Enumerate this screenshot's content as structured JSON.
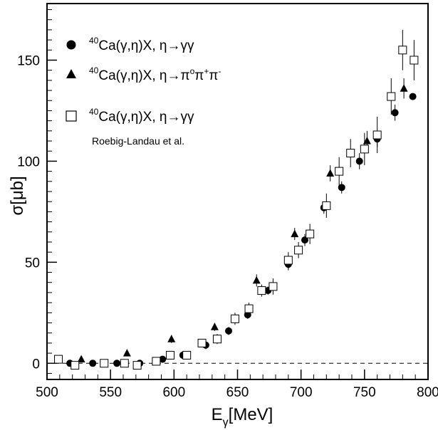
{
  "chart_data": {
    "type": "scatter",
    "xlabel_main": "E",
    "xlabel_sub": "γ",
    "xlabel_rest": "[MeV]",
    "ylabel": "σ[μb]",
    "xlim": [
      500,
      800
    ],
    "ylim": [
      -8,
      178
    ],
    "xticks": [
      500,
      550,
      600,
      650,
      700,
      750,
      800
    ],
    "yticks": [
      0,
      50,
      100,
      150
    ],
    "reference_line_y": 0,
    "legend_position": "top-left",
    "legend": {
      "entry1": {
        "prefix": "40",
        "text": "Ca(γ,η)X, η→γγ"
      },
      "entry2": {
        "prefix": "40",
        "text_a": "Ca(γ,η)X, η→π",
        "sup_o": "o",
        "mid1": "π",
        "sup_p": "+",
        "mid2": "π",
        "sup_m": "-"
      },
      "entry3": {
        "prefix": "40",
        "text": "Ca(γ,η)X, η→γγ"
      },
      "note": "Roebig-Landau et al."
    },
    "series": [
      {
        "marker": "circle",
        "x": [
          518,
          536,
          555,
          573,
          591,
          607,
          625,
          643,
          658,
          674,
          690,
          703,
          718,
          732,
          746,
          760,
          774,
          788
        ],
        "y": [
          0,
          0,
          0,
          0,
          2,
          4,
          9,
          16,
          24,
          36,
          49,
          61,
          77,
          87,
          100,
          111,
          124,
          132
        ],
        "err": [
          1,
          1,
          1,
          1,
          1,
          1.5,
          2,
          2,
          2,
          2,
          3,
          3,
          3,
          3,
          4,
          4,
          4,
          0
        ]
      },
      {
        "marker": "triangle",
        "x": [
          527,
          563,
          598,
          632,
          665,
          695,
          723,
          752,
          781
        ],
        "y": [
          2,
          5,
          12,
          18,
          41,
          64,
          94,
          110,
          136
        ],
        "err": [
          1,
          1.5,
          2,
          2,
          3,
          3,
          4,
          5,
          5
        ]
      },
      {
        "marker": "square",
        "x": [
          509,
          522,
          545,
          561,
          571,
          586,
          597,
          610,
          622,
          634,
          648,
          659,
          669,
          678,
          690,
          698,
          707,
          720,
          730,
          739,
          750,
          760,
          771,
          780,
          789
        ],
        "y": [
          2,
          -1,
          0,
          0,
          -1,
          1,
          4,
          4,
          10,
          12,
          22,
          27,
          36,
          38,
          51,
          56,
          64,
          78,
          95,
          104,
          106,
          113,
          132,
          155,
          150
        ],
        "err": [
          1.5,
          1.5,
          1.5,
          1.5,
          1.5,
          1.5,
          2,
          2,
          2,
          2.5,
          3,
          3,
          3,
          4,
          4,
          4,
          5,
          6,
          7,
          7,
          8,
          9,
          9,
          10,
          10
        ]
      }
    ]
  }
}
